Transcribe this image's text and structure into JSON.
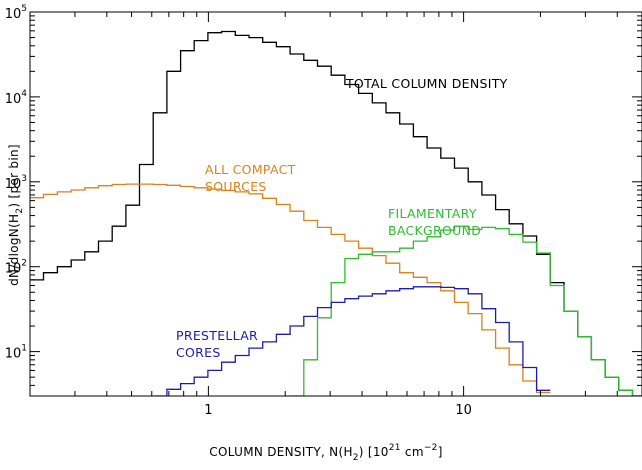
{
  "chart_data": {
    "type": "line",
    "step": true,
    "xscale": "log",
    "yscale": "log",
    "xlim": [
      0.2,
      50
    ],
    "ylim": [
      3,
      100000
    ],
    "xlabel": "COLUMN DENSITY, N(H",
    "xlabel_sub": "2",
    "xlabel_tail": ")   [10",
    "xlabel_sup": "21",
    "xlabel_unit": " cm",
    "xlabel_unit_sup": "−2",
    "xlabel_end": "]",
    "ylabel": "dN/dlogN(H",
    "ylabel_sub": "2",
    "ylabel_tail": ")   [per bin]",
    "x_ticks": [
      {
        "value": 1,
        "label": "1"
      },
      {
        "value": 10,
        "label": "10"
      }
    ],
    "y_ticks": [
      {
        "value": 10,
        "base": "10",
        "exp": "1"
      },
      {
        "value": 100,
        "base": "10",
        "exp": "2"
      },
      {
        "value": 1000,
        "base": "10",
        "exp": "3"
      },
      {
        "value": 10000,
        "base": "10",
        "exp": "4"
      },
      {
        "value": 100000,
        "base": "10",
        "exp": "5"
      }
    ],
    "bin_edges": [
      0.2,
      0.226,
      0.256,
      0.29,
      0.328,
      0.371,
      0.42,
      0.475,
      0.537,
      0.608,
      0.688,
      0.778,
      0.88,
      0.996,
      1.127,
      1.275,
      1.443,
      1.633,
      1.847,
      2.09,
      2.365,
      2.676,
      3.028,
      3.426,
      3.877,
      4.387,
      4.964,
      5.617,
      6.356,
      7.192,
      8.138,
      9.208,
      10.42,
      11.79,
      13.34,
      15.09,
      17.08,
      19.32,
      21.86,
      24.74,
      27.99,
      31.67,
      35.84,
      40.55,
      45.88,
      51.92
    ],
    "series": [
      {
        "name": "TOTAL COLUMN DENSITY",
        "color": "#000000",
        "values": [
          70,
          85,
          100,
          120,
          150,
          200,
          300,
          530,
          1600,
          6500,
          20000,
          35000,
          46000,
          57000,
          59000,
          53000,
          50000,
          44000,
          39000,
          32000,
          27000,
          23000,
          18000,
          14000,
          11000,
          8500,
          6500,
          4800,
          3400,
          2500,
          1900,
          1450,
          1000,
          700,
          470,
          320,
          230,
          140,
          65,
          30,
          15,
          8,
          5,
          3.5,
          3
        ]
      },
      {
        "name": "ALL COMPACT SOURCES",
        "color": "#e07f1a",
        "values": [
          650,
          710,
          760,
          800,
          850,
          900,
          930,
          940,
          940,
          930,
          910,
          880,
          850,
          820,
          790,
          760,
          720,
          640,
          540,
          450,
          350,
          290,
          240,
          200,
          165,
          135,
          110,
          85,
          75,
          65,
          52,
          38,
          28,
          18,
          11,
          7,
          4.5,
          3.3,
          null,
          null,
          null,
          null,
          null,
          null,
          null
        ]
      },
      {
        "name": "FILAMENTARY BACKGROUND",
        "color": "#2ebd2e",
        "values": [
          null,
          null,
          null,
          null,
          null,
          null,
          null,
          null,
          null,
          null,
          null,
          null,
          null,
          null,
          null,
          null,
          null,
          null,
          null,
          3,
          8,
          25,
          65,
          125,
          140,
          150,
          150,
          165,
          200,
          225,
          270,
          300,
          275,
          290,
          280,
          240,
          195,
          145,
          60,
          30,
          15,
          8,
          5,
          3.5,
          3
        ]
      },
      {
        "name": "PRESTELLAR CORES",
        "color": "#1b1bb8",
        "values": [
          null,
          null,
          null,
          null,
          null,
          null,
          null,
          null,
          null,
          3,
          3.6,
          4.2,
          5,
          6,
          7.5,
          9,
          11,
          13,
          16,
          20,
          26,
          33,
          38,
          42,
          45,
          48,
          52,
          55,
          58,
          58,
          57,
          55,
          48,
          32,
          22,
          13,
          6.5,
          3.5,
          null,
          null,
          null,
          null,
          null,
          null,
          null
        ]
      }
    ],
    "annotations": [
      {
        "lines": [
          "TOTAL COLUMN DENSITY"
        ],
        "color": "#000000"
      },
      {
        "lines": [
          "ALL COMPACT",
          "SOURCES"
        ],
        "color": "#e07f1a"
      },
      {
        "lines": [
          "FILAMENTARY",
          "BACKGROUND"
        ],
        "color": "#2ebd2e"
      },
      {
        "lines": [
          "PRESTELLAR",
          "CORES"
        ],
        "color": "#1b1bb8"
      }
    ],
    "legend": "none",
    "grid": false
  }
}
